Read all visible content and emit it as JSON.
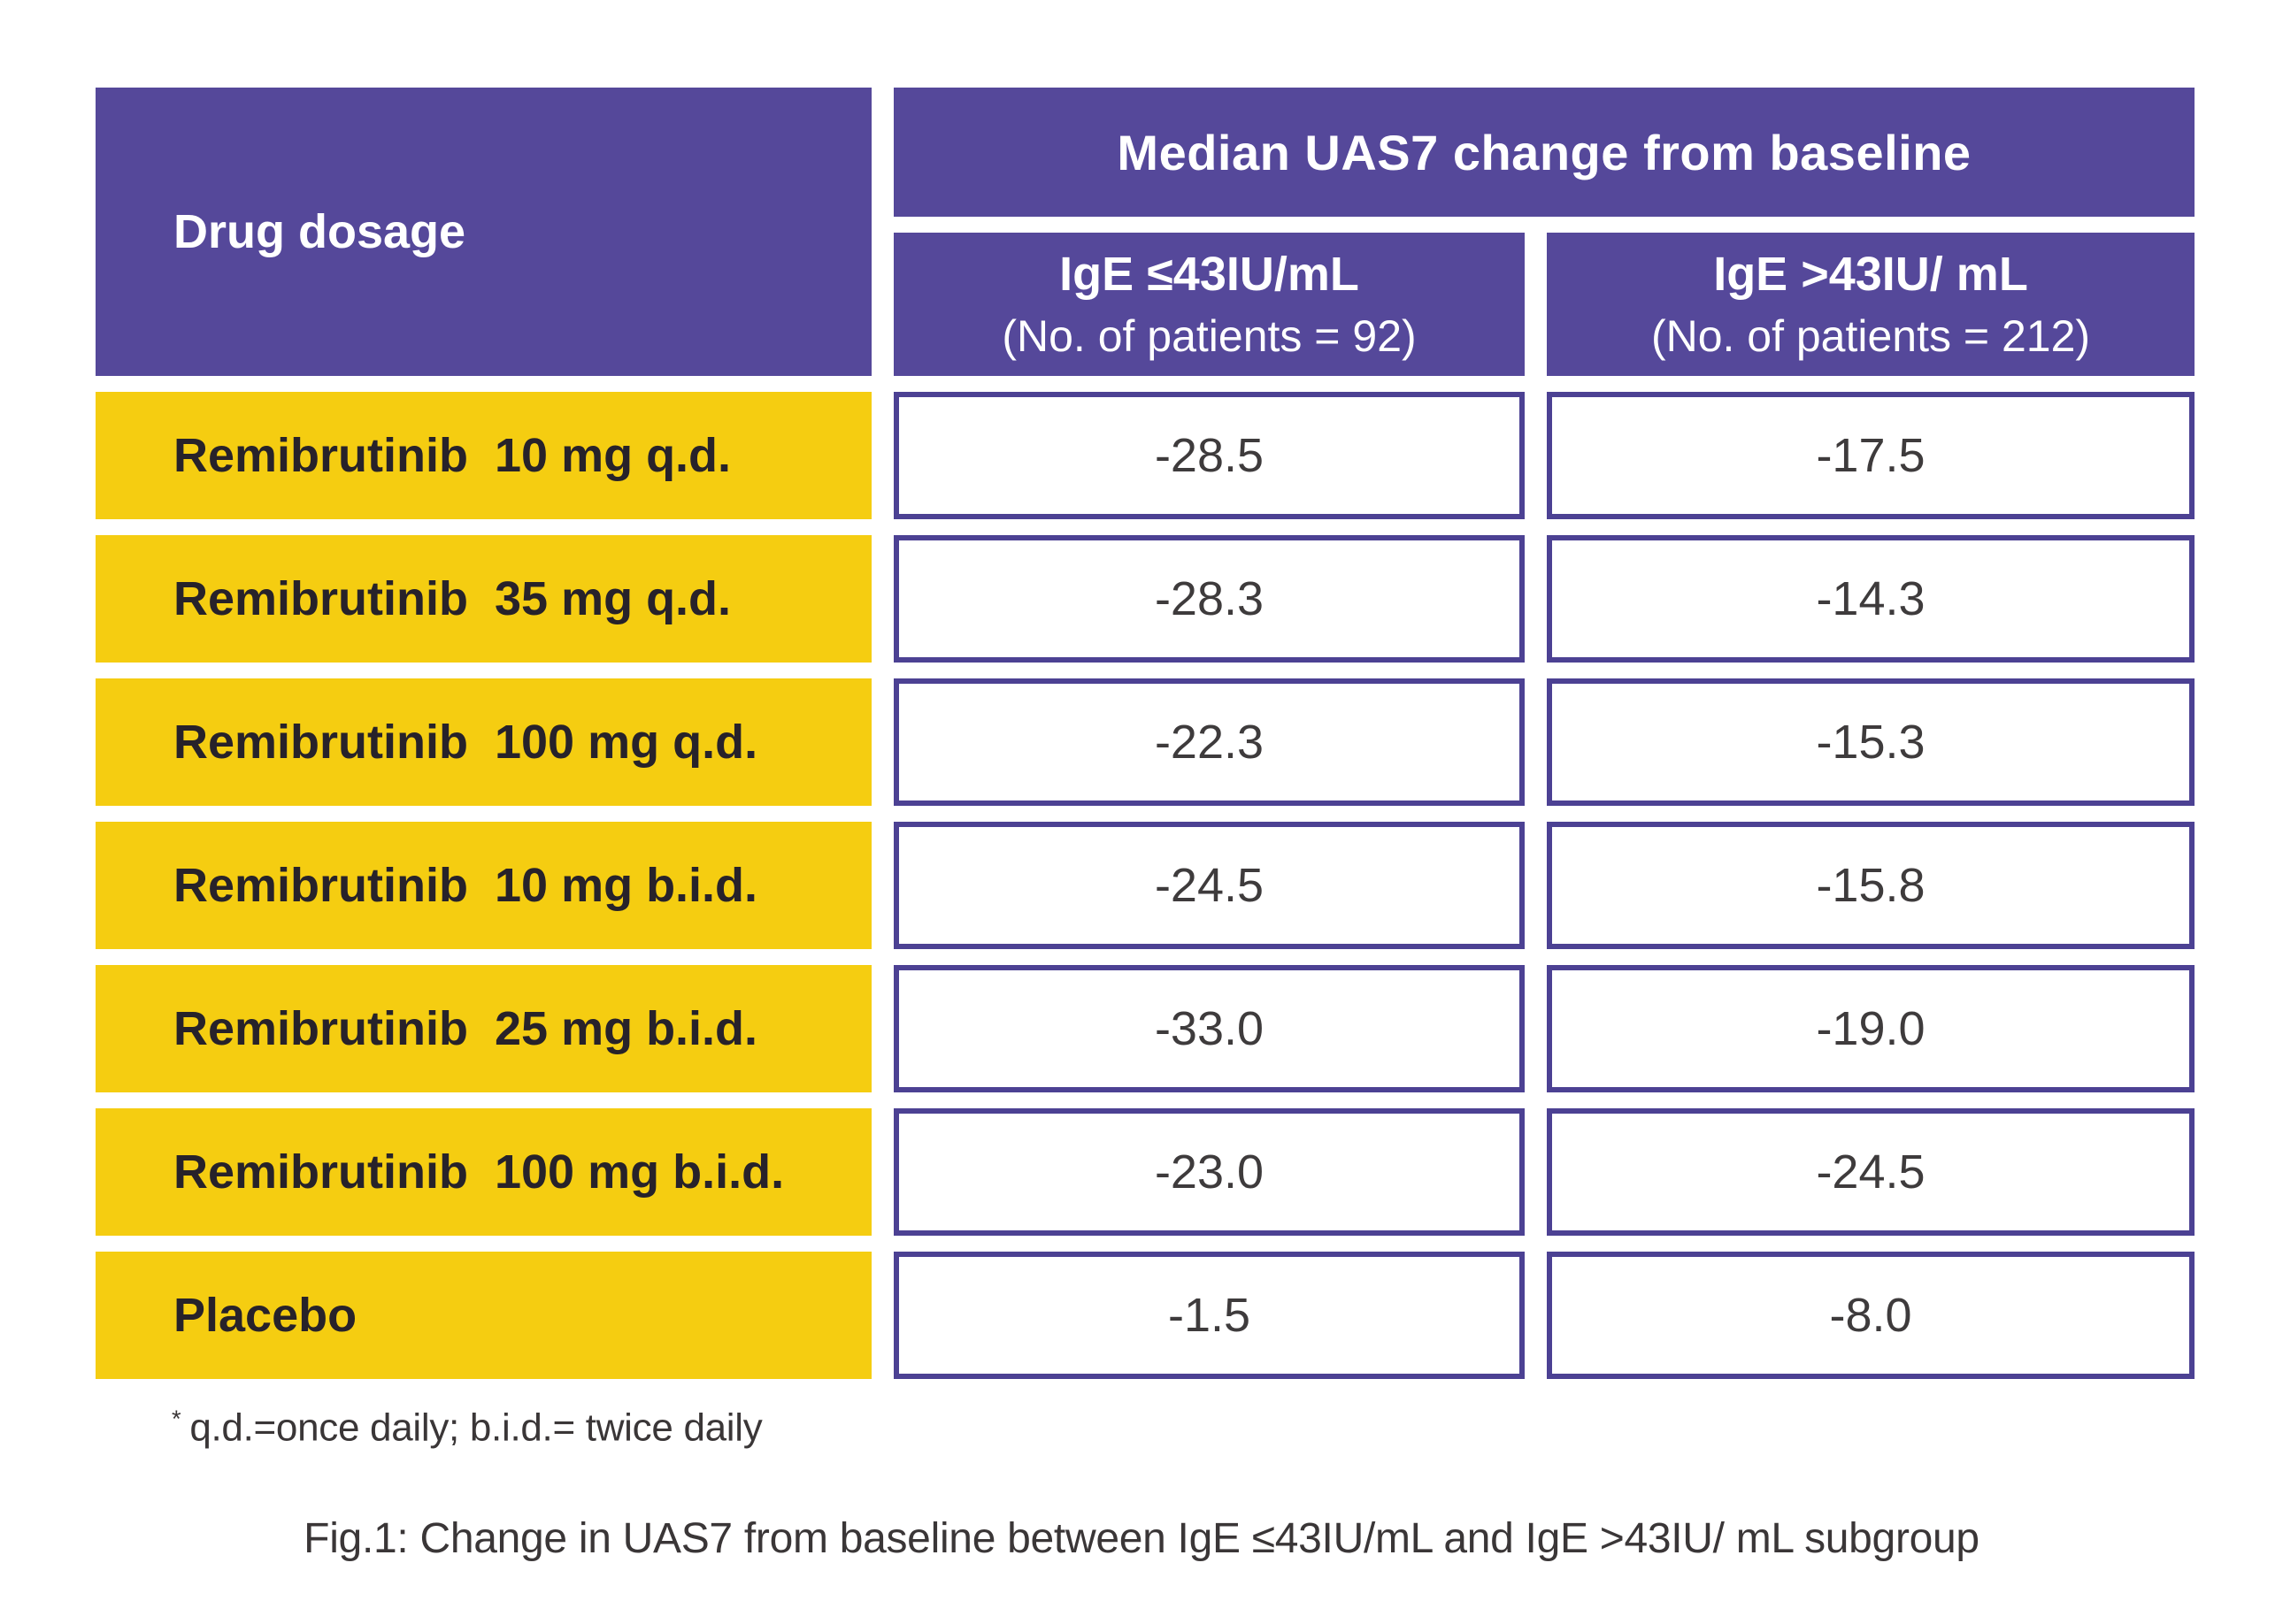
{
  "colors": {
    "header_purple": "#55489A",
    "cell_border_purple": "#4C4193",
    "row_yellow": "#F5CD11",
    "header_text": "#ffffff",
    "label_text": "#27222A",
    "value_text": "#3E3B3C",
    "note_text": "#3A3637",
    "background": "#ffffff"
  },
  "table": {
    "corner_header": "Drug dosage",
    "main_header": "Median UAS7 change from baseline",
    "subheaders": [
      {
        "line1": "IgE ≤43IU/mL",
        "line2": "(No. of patients = 92)"
      },
      {
        "line1": "IgE >43IU/ mL",
        "line2": "(No. of patients = 212)"
      }
    ],
    "rows": [
      {
        "label": "Remibrutinib  10 mg q.d.",
        "v1": "-28.5",
        "v2": "-17.5"
      },
      {
        "label": "Remibrutinib  35 mg q.d.",
        "v1": "-28.3",
        "v2": "-14.3"
      },
      {
        "label": "Remibrutinib  100 mg q.d.",
        "v1": "-22.3",
        "v2": "-15.3"
      },
      {
        "label": "Remibrutinib  10 mg b.i.d.",
        "v1": "-24.5",
        "v2": "-15.8"
      },
      {
        "label": "Remibrutinib  25 mg b.i.d.",
        "v1": "-33.0",
        "v2": "-19.0"
      },
      {
        "label": "Remibrutinib  100 mg b.i.d.",
        "v1": "-23.0",
        "v2": "-24.5"
      },
      {
        "label": "Placebo",
        "v1": "-1.5",
        "v2": "-8.0"
      }
    ]
  },
  "footnote": {
    "marker": "*",
    "text": "q.d.=once daily; b.i.d.= twice daily"
  },
  "caption": "Fig.1: Change in UAS7 from baseline between IgE ≤43IU/mL and IgE >43IU/ mL subgroup",
  "chart_data": {
    "type": "table",
    "title": "Median UAS7 change from baseline",
    "row_header": "Drug dosage",
    "columns": [
      "IgE ≤43IU/mL (No. of patients = 92)",
      "IgE >43IU/ mL (No. of patients = 212)"
    ],
    "rows": [
      {
        "drug": "Remibrutinib 10 mg q.d.",
        "ige_le_43IU_mL": -28.5,
        "ige_gt_43IU_mL": -17.5
      },
      {
        "drug": "Remibrutinib 35 mg q.d.",
        "ige_le_43IU_mL": -28.3,
        "ige_gt_43IU_mL": -14.3
      },
      {
        "drug": "Remibrutinib 100 mg q.d.",
        "ige_le_43IU_mL": -22.3,
        "ige_gt_43IU_mL": -15.3
      },
      {
        "drug": "Remibrutinib 10 mg b.i.d.",
        "ige_le_43IU_mL": -24.5,
        "ige_gt_43IU_mL": -15.8
      },
      {
        "drug": "Remibrutinib 25 mg b.i.d.",
        "ige_le_43IU_mL": -33.0,
        "ige_gt_43IU_mL": -19.0
      },
      {
        "drug": "Remibrutinib 100 mg b.i.d.",
        "ige_le_43IU_mL": -23.0,
        "ige_gt_43IU_mL": -24.5
      },
      {
        "drug": "Placebo",
        "ige_le_43IU_mL": -1.5,
        "ige_gt_43IU_mL": -8.0
      }
    ],
    "footnote": "* q.d.=once daily; b.i.d.= twice daily",
    "caption": "Fig.1: Change in UAS7 from baseline between IgE ≤43IU/mL and IgE >43IU/ mL subgroup",
    "legend_position": "none",
    "grid": false
  }
}
